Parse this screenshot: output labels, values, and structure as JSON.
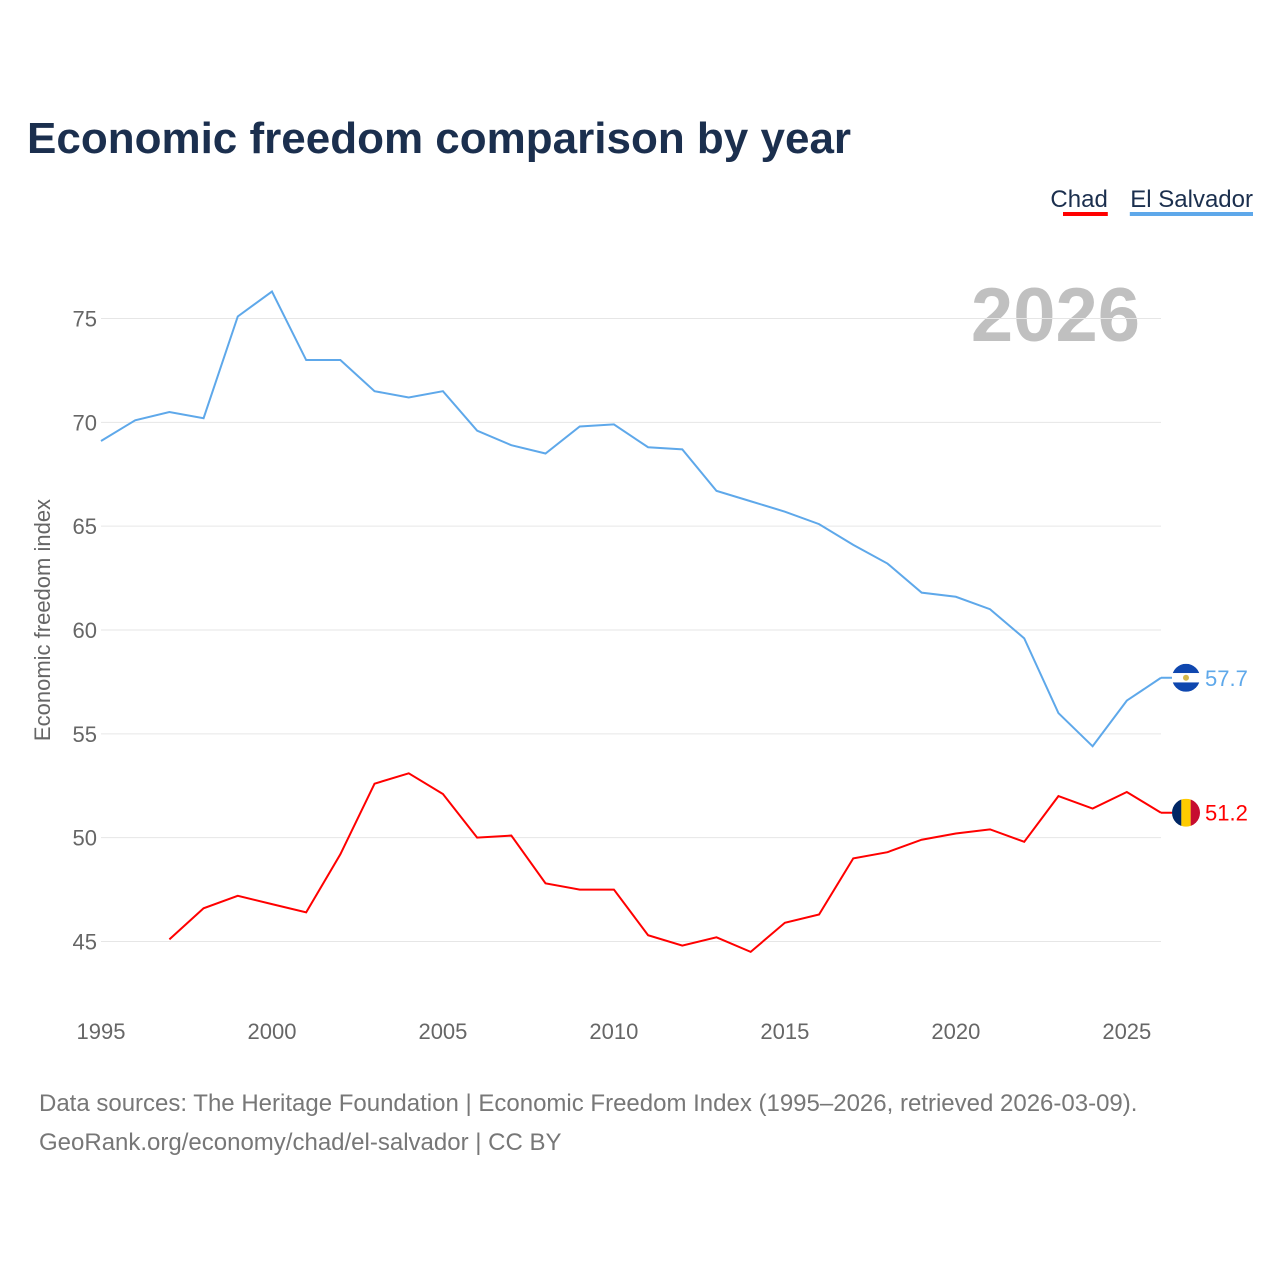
{
  "chart_data": {
    "type": "line",
    "title": "Economic freedom comparison by year",
    "xlabel": "",
    "ylabel": "Economic freedom index",
    "year_watermark": "2026",
    "xlim": [
      1995,
      2026
    ],
    "ylim": [
      41.7,
      78.3
    ],
    "xticks": [
      1995,
      2000,
      2005,
      2010,
      2015,
      2020,
      2025
    ],
    "yticks": [
      45,
      50,
      55,
      60,
      65,
      70,
      75
    ],
    "grid": true,
    "legend_position": "top-right",
    "series": [
      {
        "name": "Chad",
        "color": "#ff0000",
        "end_label": "51.2",
        "x": [
          1997,
          1998,
          1999,
          2000,
          2001,
          2002,
          2003,
          2004,
          2005,
          2006,
          2007,
          2008,
          2009,
          2010,
          2011,
          2012,
          2013,
          2014,
          2015,
          2016,
          2017,
          2018,
          2019,
          2020,
          2021,
          2022,
          2023,
          2024,
          2025,
          2026
        ],
        "values": [
          45.1,
          46.6,
          47.2,
          46.8,
          46.4,
          49.2,
          52.6,
          53.1,
          52.1,
          50.0,
          50.1,
          47.8,
          47.5,
          47.5,
          45.3,
          44.8,
          45.2,
          44.5,
          45.9,
          46.3,
          49.0,
          49.3,
          49.9,
          50.2,
          50.4,
          49.8,
          52.0,
          51.4,
          52.2,
          51.2
        ]
      },
      {
        "name": "El Salvador",
        "color": "#5ea8ea",
        "end_label": "57.7",
        "x": [
          1995,
          1996,
          1997,
          1998,
          1999,
          2000,
          2001,
          2002,
          2003,
          2004,
          2005,
          2006,
          2007,
          2008,
          2009,
          2010,
          2011,
          2012,
          2013,
          2014,
          2015,
          2016,
          2017,
          2018,
          2019,
          2020,
          2021,
          2022,
          2023,
          2024,
          2025,
          2026
        ],
        "values": [
          69.1,
          70.1,
          70.5,
          70.2,
          75.1,
          76.3,
          73.0,
          73.0,
          71.5,
          71.2,
          71.5,
          69.6,
          68.9,
          68.5,
          69.8,
          69.9,
          68.8,
          68.7,
          66.7,
          66.2,
          65.7,
          65.1,
          64.1,
          63.2,
          61.8,
          61.6,
          61.0,
          59.6,
          56.0,
          54.4,
          56.6,
          57.7
        ]
      }
    ]
  },
  "footer": {
    "line1": "Data sources: The Heritage Foundation | Economic Freedom Index (1995–2026, retrieved 2026-03-09).",
    "line2": "GeoRank.org/economy/chad/el-salvador | CC BY"
  }
}
